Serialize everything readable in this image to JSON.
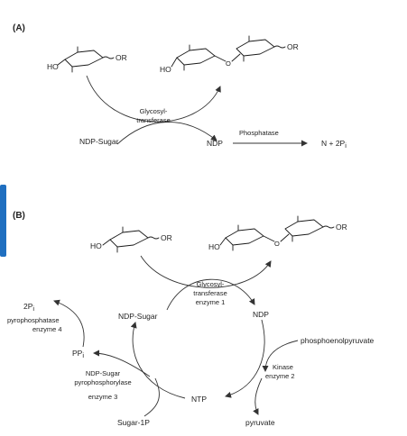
{
  "colors": {
    "accent_bar": "#1f6fc0",
    "line": "#333333",
    "text": "#222222"
  },
  "panel_a": {
    "label": "(A)",
    "substrate_ho": "HO",
    "substrate_or": "OR",
    "product_ho": "HO",
    "product_o_link": "O",
    "product_or": "OR",
    "enzyme_line1": "Glycosyl-",
    "enzyme_line2": "transferase",
    "donor": "NDP-Sugar",
    "ndp": "NDP",
    "phosphatase": "Phosphatase",
    "end_product": "N + 2P",
    "end_product_sub": "i"
  },
  "panel_b": {
    "label": "(B)",
    "substrate_ho": "HO",
    "substrate_or": "OR",
    "product_ho": "HO",
    "product_o_link": "O",
    "product_or": "OR",
    "enzyme1_line1": "Glycosyl-",
    "enzyme1_line2": "transferase",
    "enzyme1_line3": "enzyme 1",
    "ndp_sugar": "NDP-Sugar",
    "ndp": "NDP",
    "pep": "phosphoenolpyruvate",
    "kinase_line1": "Kinase",
    "kinase_line2": "enzyme 2",
    "pyruvate": "pyruvate",
    "ntp": "NTP",
    "enzyme3_line1": "NDP-Sugar",
    "enzyme3_line2": "pyrophosphorylase",
    "enzyme3_line3": "enzyme 3",
    "sugar1p": "Sugar-1P",
    "ppi": "PP",
    "ppi_sub": "i",
    "two_pi": "2P",
    "two_pi_sub": "i",
    "enzyme4_line1": "pyrophosphatase",
    "enzyme4_line2": "enzyme 4"
  }
}
